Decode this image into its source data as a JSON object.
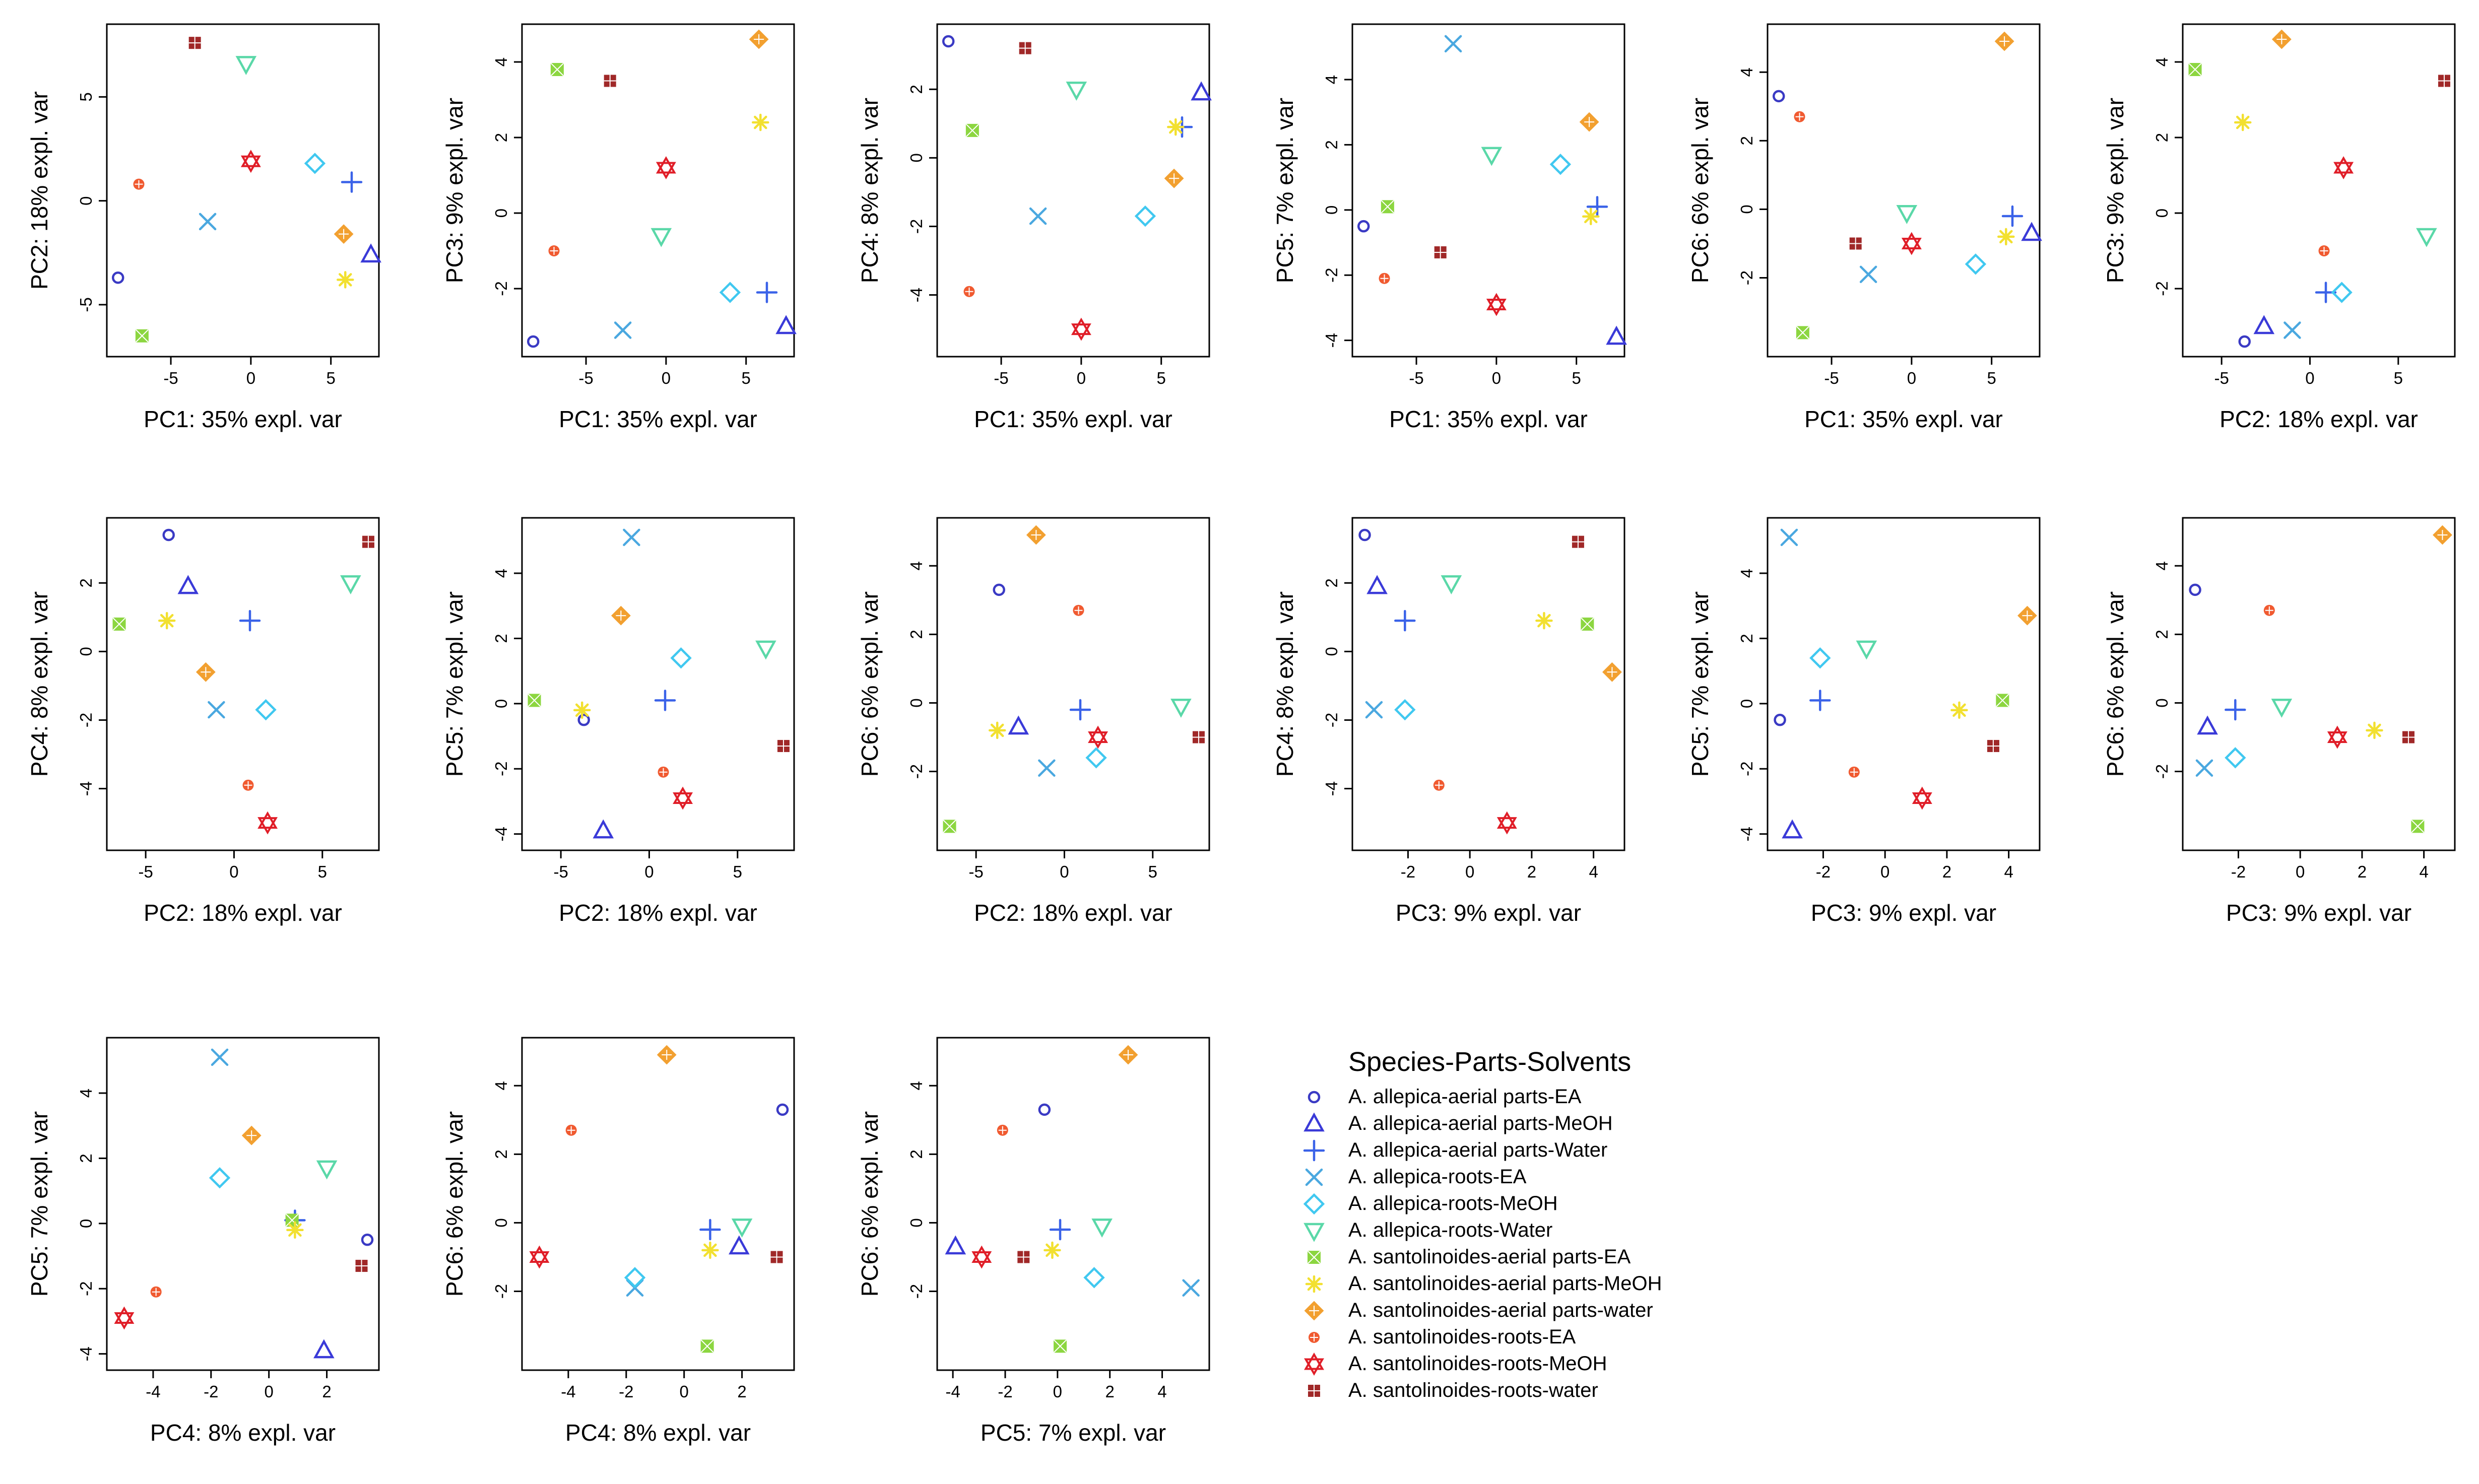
{
  "legend": {
    "title": "Species-Parts-Solvents",
    "groups": [
      {
        "label": "A. allepica-aerial parts-EA",
        "symbol": "circle",
        "color": "#3a3ac4"
      },
      {
        "label": "A. allepica-aerial parts-MeOH",
        "symbol": "triangle-up",
        "color": "#3a3ad8"
      },
      {
        "label": "A. allepica-aerial parts-Water",
        "symbol": "plus",
        "color": "#3a62e8"
      },
      {
        "label": "A. allepica-roots-EA",
        "symbol": "cross",
        "color": "#4aa8e0"
      },
      {
        "label": "A. allepica-roots-MeOH",
        "symbol": "diamond",
        "color": "#40c8f0"
      },
      {
        "label": "A. allepica-roots-Water",
        "symbol": "triangle-down",
        "color": "#5ad8a8"
      },
      {
        "label": "A. santolinoides-aerial parts-EA",
        "symbol": "square-x",
        "color": "#8cd640"
      },
      {
        "label": "A. santolinoides-aerial parts-MeOH",
        "symbol": "asterisk",
        "color": "#f2e030"
      },
      {
        "label": "A. santolinoides-aerial parts-water",
        "symbol": "diamond-plus",
        "color": "#f2a030"
      },
      {
        "label": "A. santolinoides-roots-EA",
        "symbol": "circle-plus",
        "color": "#f05a30"
      },
      {
        "label": "A. santolinoides-roots-MeOH",
        "symbol": "star-david",
        "color": "#e01e28"
      },
      {
        "label": "A. santolinoides-roots-water",
        "symbol": "square-plus",
        "color": "#a02828"
      }
    ]
  },
  "pcs": {
    "PC1": [
      -8.3,
      7.5,
      6.3,
      -2.7,
      4.0,
      -0.3,
      -6.8,
      5.9,
      5.8,
      -7.0,
      0.0,
      -3.5
    ],
    "PC2": [
      -3.7,
      -2.6,
      0.9,
      -1.0,
      1.8,
      6.6,
      -6.5,
      -3.8,
      -1.6,
      0.8,
      1.9,
      7.6
    ],
    "PC3": [
      -3.4,
      -3.0,
      -2.1,
      -3.1,
      -2.1,
      -0.6,
      3.8,
      2.4,
      4.6,
      -1.0,
      1.2,
      3.5
    ],
    "PC4": [
      3.4,
      1.9,
      0.9,
      -1.7,
      -1.7,
      2.0,
      0.8,
      0.9,
      -0.6,
      -3.9,
      -5.0,
      3.2
    ],
    "PC5": [
      -0.5,
      -3.9,
      0.1,
      5.1,
      1.4,
      1.7,
      0.1,
      -0.2,
      2.7,
      -2.1,
      -2.9,
      -1.3
    ],
    "PC6": [
      3.3,
      -0.7,
      -0.2,
      -1.9,
      -1.6,
      -0.1,
      -3.6,
      -0.8,
      4.9,
      2.7,
      -1.0,
      -1.0
    ]
  },
  "chart_data": [
    {
      "type": "scatter",
      "x_pc": "PC1",
      "y_pc": "PC2",
      "xlabel": "PC1: 35% expl. var",
      "ylabel": "PC2: 18% expl. var",
      "xlim": [
        -9,
        8
      ],
      "ylim": [
        -7.5,
        8.5
      ],
      "xticks": [
        "-5",
        "0",
        "5"
      ],
      "yticks": [
        "-5",
        "0",
        "5"
      ]
    },
    {
      "type": "scatter",
      "x_pc": "PC1",
      "y_pc": "PC3",
      "xlabel": "PC1: 35% expl. var",
      "ylabel": "PC3: 9% expl. var",
      "xlim": [
        -9,
        8
      ],
      "ylim": [
        -3.8,
        5.0
      ],
      "xticks": [
        "-5",
        "0",
        "5"
      ],
      "yticks": [
        "-2",
        "0",
        "2",
        "4"
      ]
    },
    {
      "type": "scatter",
      "x_pc": "PC1",
      "y_pc": "PC4",
      "xlabel": "PC1: 35% expl. var",
      "ylabel": "PC4: 8% expl. var",
      "xlim": [
        -9,
        8
      ],
      "ylim": [
        -5.8,
        3.9
      ],
      "xticks": [
        "-5",
        "0",
        "5"
      ],
      "yticks": [
        "-4",
        "-2",
        "0",
        "2"
      ]
    },
    {
      "type": "scatter",
      "x_pc": "PC1",
      "y_pc": "PC5",
      "xlabel": "PC1: 35% expl. var",
      "ylabel": "PC5: 7% expl. var",
      "xlim": [
        -9,
        8
      ],
      "ylim": [
        -4.5,
        5.7
      ],
      "xticks": [
        "-5",
        "0",
        "5"
      ],
      "yticks": [
        "-4",
        "-2",
        "0",
        "2",
        "4"
      ]
    },
    {
      "type": "scatter",
      "x_pc": "PC1",
      "y_pc": "PC6",
      "xlabel": "PC1: 35% expl. var",
      "ylabel": "PC6: 6% expl. var",
      "xlim": [
        -9,
        8
      ],
      "ylim": [
        -4.3,
        5.4
      ],
      "xticks": [
        "-5",
        "0",
        "5"
      ],
      "yticks": [
        "-2",
        "0",
        "2",
        "4"
      ]
    },
    {
      "type": "scatter",
      "x_pc": "PC2",
      "y_pc": "PC3",
      "xlabel": "PC2: 18% expl. var",
      "ylabel": "PC3: 9% expl. var",
      "xlim": [
        -7.2,
        8.2
      ],
      "ylim": [
        -3.8,
        5.0
      ],
      "xticks": [
        "-5",
        "0",
        "5"
      ],
      "yticks": [
        "-2",
        "0",
        "2",
        "4"
      ]
    },
    {
      "type": "scatter",
      "x_pc": "PC2",
      "y_pc": "PC4",
      "xlabel": "PC2: 18% expl. var",
      "ylabel": "PC4: 8% expl. var",
      "xlim": [
        -7.2,
        8.2
      ],
      "ylim": [
        -5.8,
        3.9
      ],
      "xticks": [
        "-5",
        "0",
        "5"
      ],
      "yticks": [
        "-4",
        "-2",
        "0",
        "2"
      ]
    },
    {
      "type": "scatter",
      "x_pc": "PC2",
      "y_pc": "PC5",
      "xlabel": "PC2: 18% expl. var",
      "ylabel": "PC5: 7% expl. var",
      "xlim": [
        -7.2,
        8.2
      ],
      "ylim": [
        -4.5,
        5.7
      ],
      "xticks": [
        "-5",
        "0",
        "5"
      ],
      "yticks": [
        "-4",
        "-2",
        "0",
        "2",
        "4"
      ]
    },
    {
      "type": "scatter",
      "x_pc": "PC2",
      "y_pc": "PC6",
      "xlabel": "PC2: 18% expl. var",
      "ylabel": "PC6: 6% expl. var",
      "xlim": [
        -7.2,
        8.2
      ],
      "ylim": [
        -4.3,
        5.4
      ],
      "xticks": [
        "-5",
        "0",
        "5"
      ],
      "yticks": [
        "-2",
        "0",
        "2",
        "4"
      ]
    },
    {
      "type": "scatter",
      "x_pc": "PC3",
      "y_pc": "PC4",
      "xlabel": "PC3: 9% expl. var",
      "ylabel": "PC4: 8% expl. var",
      "xlim": [
        -3.8,
        5.0
      ],
      "ylim": [
        -5.8,
        3.9
      ],
      "xticks": [
        "-2",
        "0",
        "2",
        "4"
      ],
      "yticks": [
        "-4",
        "-2",
        "0",
        "2"
      ]
    },
    {
      "type": "scatter",
      "x_pc": "PC3",
      "y_pc": "PC5",
      "xlabel": "PC3: 9% expl. var",
      "ylabel": "PC5: 7% expl. var",
      "xlim": [
        -3.8,
        5.0
      ],
      "ylim": [
        -4.5,
        5.7
      ],
      "xticks": [
        "-2",
        "0",
        "2",
        "4"
      ],
      "yticks": [
        "-4",
        "-2",
        "0",
        "2",
        "4"
      ]
    },
    {
      "type": "scatter",
      "x_pc": "PC3",
      "y_pc": "PC6",
      "xlabel": "PC3: 9% expl. var",
      "ylabel": "PC6: 6% expl. var",
      "xlim": [
        -3.8,
        5.0
      ],
      "ylim": [
        -4.3,
        5.4
      ],
      "xticks": [
        "-2",
        "0",
        "2",
        "4"
      ],
      "yticks": [
        "-2",
        "0",
        "2",
        "4"
      ]
    },
    {
      "type": "scatter",
      "x_pc": "PC4",
      "y_pc": "PC5",
      "xlabel": "PC4: 8% expl. var",
      "ylabel": "PC5: 7% expl. var",
      "xlim": [
        -5.6,
        3.8
      ],
      "ylim": [
        -4.5,
        5.7
      ],
      "xticks": [
        "-4",
        "-2",
        "0",
        "2"
      ],
      "yticks": [
        "-4",
        "-2",
        "0",
        "2",
        "4"
      ]
    },
    {
      "type": "scatter",
      "x_pc": "PC4",
      "y_pc": "PC6",
      "xlabel": "PC4: 8% expl. var",
      "ylabel": "PC6: 6% expl. var",
      "xlim": [
        -5.6,
        3.8
      ],
      "ylim": [
        -4.3,
        5.4
      ],
      "xticks": [
        "-4",
        "-2",
        "0",
        "2"
      ],
      "yticks": [
        "-2",
        "0",
        "2",
        "4"
      ]
    },
    {
      "type": "scatter",
      "x_pc": "PC5",
      "y_pc": "PC6",
      "xlabel": "PC5: 7% expl. var",
      "ylabel": "PC6: 6% expl. var",
      "xlim": [
        -4.6,
        5.8
      ],
      "ylim": [
        -4.3,
        5.4
      ],
      "xticks": [
        "-4",
        "-2",
        "0",
        "2",
        "4"
      ],
      "yticks": [
        "-2",
        "0",
        "2",
        "4"
      ]
    }
  ]
}
